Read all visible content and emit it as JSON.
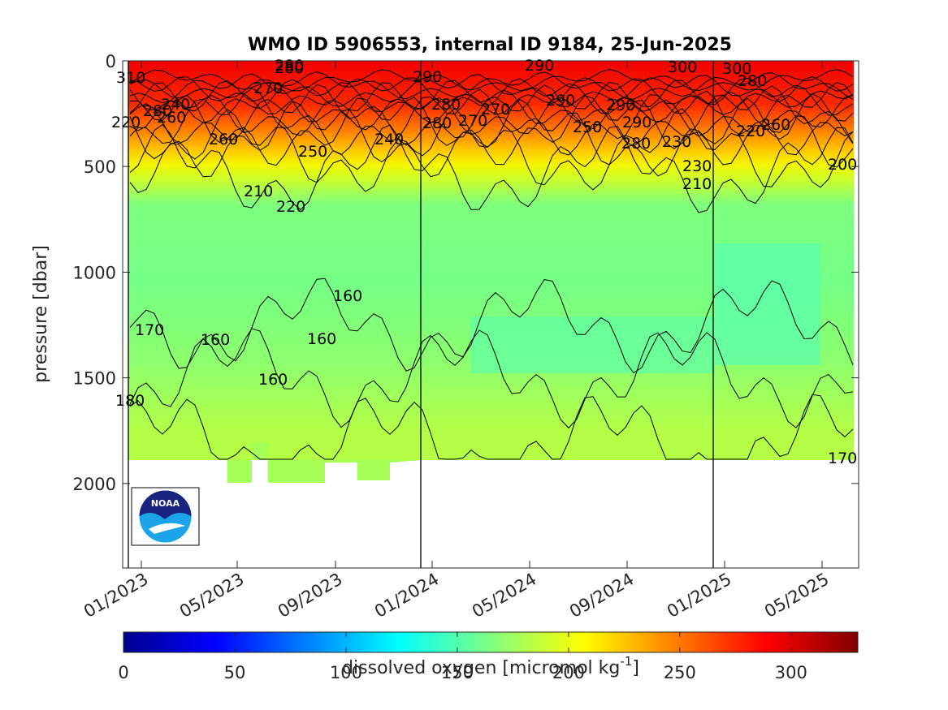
{
  "chart_data": {
    "type": "heatmap",
    "title": "WMO ID 5906553, internal ID 9184, 25-Jun-2025",
    "ylabel": "pressure [dbar]",
    "ylim": [
      0,
      2400
    ],
    "y_reversed": true,
    "y_ticks": [
      "0",
      "500",
      "1000",
      "1500",
      "2000"
    ],
    "x_ticks": [
      "01/2023",
      "05/2023",
      "09/2023",
      "01/2024",
      "05/2024",
      "09/2024",
      "01/2025",
      "05/2025"
    ],
    "colorbar": {
      "label": "dissolved oxygen [micromol kg",
      "label_sup": "-1",
      "label_end": "]",
      "ticks": [
        "0",
        "50",
        "100",
        "150",
        "200",
        "250",
        "300"
      ],
      "range": [
        0,
        330
      ],
      "colormap": "jet"
    },
    "contour_labels": [
      "310",
      "280",
      "280",
      "270",
      "290",
      "290",
      "300",
      "300",
      "280",
      "240",
      "220",
      "280",
      "260",
      "280",
      "270",
      "280",
      "270",
      "290",
      "290",
      "250",
      "290",
      "220",
      "260",
      "260",
      "250",
      "240",
      "280",
      "230",
      "230",
      "200",
      "210",
      "210",
      "220",
      "160",
      "170",
      "160",
      "160",
      "160",
      "180",
      "170"
    ],
    "profile_depth_dbar": 1890,
    "year_boundaries": [
      "01/2024",
      "01/2025"
    ]
  },
  "logo": {
    "name": "noaa-logo",
    "text": "NOAA"
  }
}
